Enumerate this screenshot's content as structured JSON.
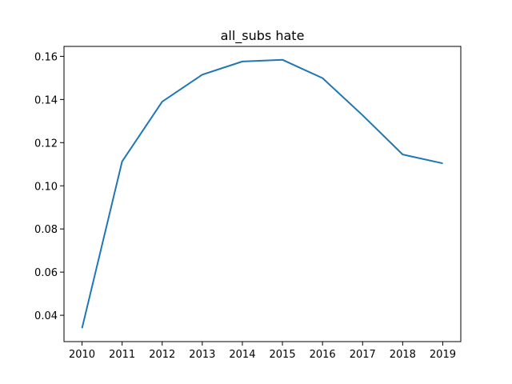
{
  "chart_data": {
    "type": "line",
    "title": "all_subs hate",
    "xlabel": "",
    "ylabel": "",
    "x": [
      2010,
      2011,
      2012,
      2013,
      2014,
      2015,
      2016,
      2017,
      2018,
      2019
    ],
    "series": [
      {
        "values": [
          0.034,
          0.1113,
          0.139,
          0.1515,
          0.1576,
          0.1584,
          0.1499,
          0.1327,
          0.1145,
          0.1104
        ],
        "color": "#1f77b4"
      }
    ],
    "xlim": [
      2009.55,
      2019.45
    ],
    "ylim": [
      0.0278,
      0.1646
    ],
    "xticks": [
      "2010",
      "2011",
      "2012",
      "2013",
      "2014",
      "2015",
      "2016",
      "2017",
      "2018",
      "2019"
    ],
    "yticks": [
      "0.04",
      "0.06",
      "0.08",
      "0.10",
      "0.12",
      "0.14",
      "0.16"
    ],
    "grid": false,
    "legend": "none"
  }
}
